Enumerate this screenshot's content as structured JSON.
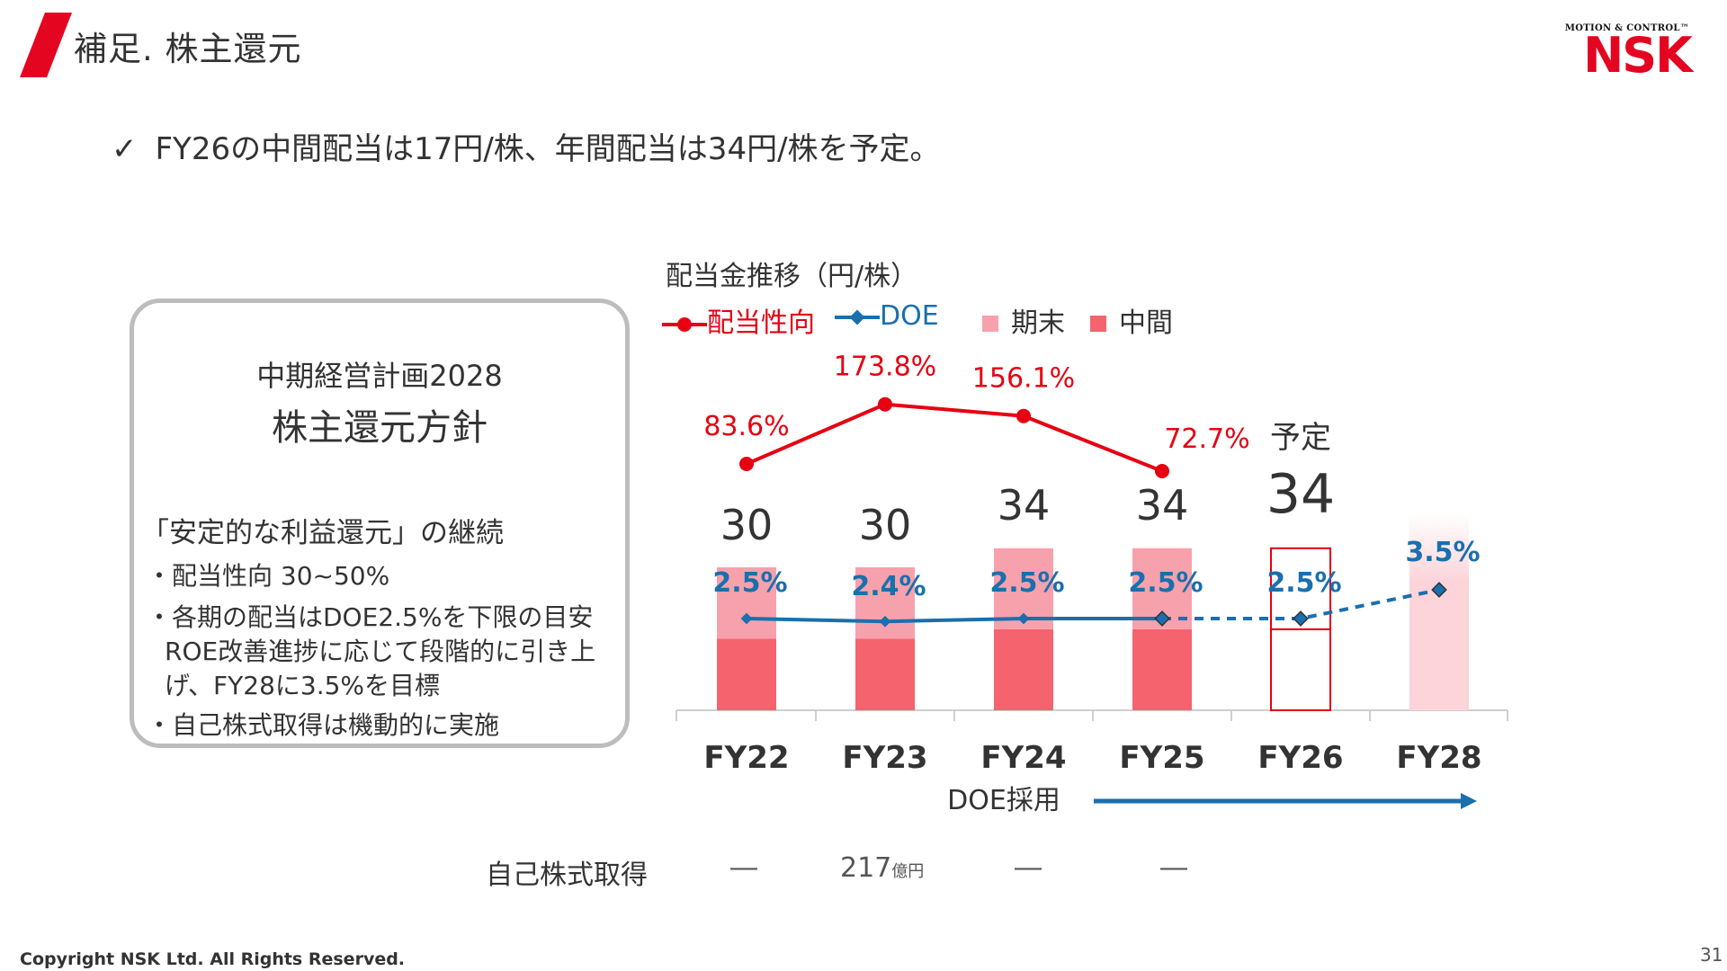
{
  "header": {
    "title": "補足.  株主還元",
    "logo_top": "MOTION & CONTROL™",
    "logo_main": "NSK"
  },
  "bullet": {
    "icon": "check-icon",
    "text": "FY26の中間配当は17円/株、年間配当は34円/株を予定。"
  },
  "policy": {
    "title_line1": "中期経営計画2028",
    "title_line2": "株主還元方針",
    "heading": "「安定的な利益還元」の継続",
    "items": [
      "・配当性向 30~50%",
      "・各期の配当はDOE2.5%を下限の目安",
      "ROE改善進捗に応じて段階的に引き上",
      "げ、FY28に3.5%を目標",
      "・自己株式取得は機動的に実施"
    ]
  },
  "chart_caption": "配当金推移（円/株）",
  "legend": {
    "payout": "配当性向",
    "doe": "DOE",
    "final": "期末",
    "interim": "中間"
  },
  "colors": {
    "payout": "#e60012",
    "doe": "#1a6fae",
    "final": "#f7a1ac",
    "interim": "#f5636f",
    "plan_outline": "#e60012",
    "fy28_bar": "#fcd4da",
    "brand": "#e40521"
  },
  "chart_data": {
    "type": "bar",
    "categories": [
      "FY22",
      "FY23",
      "FY24",
      "FY25",
      "FY26",
      "FY28"
    ],
    "series": [
      {
        "name": "中間",
        "values": [
          15,
          15,
          17,
          17,
          17,
          null
        ]
      },
      {
        "name": "期末",
        "values": [
          15,
          15,
          17,
          17,
          17,
          null
        ]
      },
      {
        "name": "配当性向",
        "type": "line",
        "unit": "%",
        "values": [
          83.6,
          173.8,
          156.1,
          72.7,
          null,
          null
        ]
      },
      {
        "name": "DOE",
        "type": "line",
        "unit": "%",
        "values": [
          2.5,
          2.4,
          2.5,
          2.5,
          2.5,
          3.5
        ],
        "dashed_from": "FY25"
      }
    ],
    "totals": [
      30,
      30,
      34,
      34,
      34,
      null
    ],
    "total_labels": [
      "30",
      "30",
      "34",
      "34",
      "34",
      ""
    ],
    "payout_labels": [
      "83.6%",
      "173.8%",
      "156.1%",
      "72.7%",
      "",
      ""
    ],
    "doe_labels": [
      "2.5%",
      "2.4%",
      "2.5%",
      "2.5%",
      "2.5%",
      "3.5%"
    ],
    "plan_label": "予定",
    "doe_adoption_label": "DOE採用",
    "ylim": [
      0,
      40
    ]
  },
  "buyback": {
    "label": "自己株式取得",
    "values": [
      "―",
      "217",
      "―",
      "―"
    ],
    "unit": "億円"
  },
  "footer": {
    "copyright": "Copyright NSK Ltd. All Rights Reserved.",
    "page": "31"
  }
}
